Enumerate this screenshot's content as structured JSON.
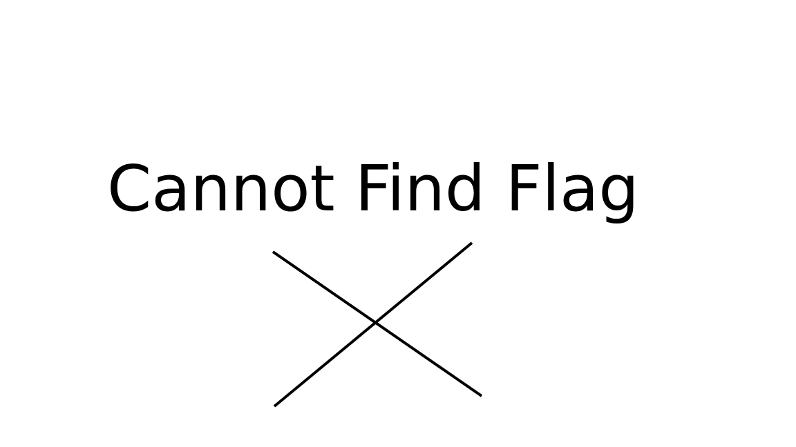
{
  "message": {
    "text": "Cannot Find Flag",
    "color": "#000000"
  },
  "cross": {
    "icon": "cross-mark-icon",
    "color": "#000000"
  },
  "background": "#ffffff"
}
